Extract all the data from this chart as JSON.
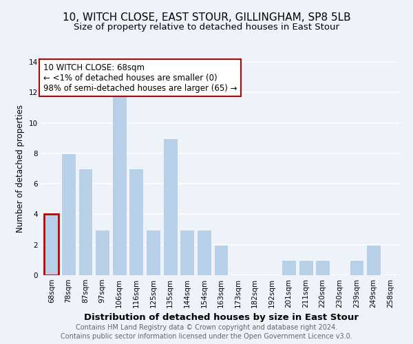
{
  "title": "10, WITCH CLOSE, EAST STOUR, GILLINGHAM, SP8 5LB",
  "subtitle": "Size of property relative to detached houses in East Stour",
  "xlabel": "Distribution of detached houses by size in East Stour",
  "ylabel": "Number of detached properties",
  "bar_labels": [
    "68sqm",
    "78sqm",
    "87sqm",
    "97sqm",
    "106sqm",
    "116sqm",
    "125sqm",
    "135sqm",
    "144sqm",
    "154sqm",
    "163sqm",
    "173sqm",
    "182sqm",
    "192sqm",
    "201sqm",
    "211sqm",
    "220sqm",
    "230sqm",
    "239sqm",
    "249sqm",
    "258sqm"
  ],
  "bar_values": [
    4,
    8,
    7,
    3,
    12,
    7,
    3,
    9,
    3,
    3,
    2,
    0,
    0,
    0,
    1,
    1,
    1,
    0,
    1,
    2,
    0
  ],
  "bar_color": "#b8cfe8",
  "highlight_index": 0,
  "highlight_color": "#c00000",
  "annotation_text": "10 WITCH CLOSE: 68sqm\n← <1% of detached houses are smaller (0)\n98% of semi-detached houses are larger (65) →",
  "annotation_box_color": "#ffffff",
  "annotation_box_edge": "#c00000",
  "ylim": [
    0,
    14
  ],
  "yticks": [
    0,
    2,
    4,
    6,
    8,
    10,
    12,
    14
  ],
  "footer1": "Contains HM Land Registry data © Crown copyright and database right 2024.",
  "footer2": "Contains public sector information licensed under the Open Government Licence v3.0.",
  "bg_color": "#eef2f9",
  "grid_color": "#ffffff",
  "title_fontsize": 11,
  "subtitle_fontsize": 9.5,
  "xlabel_fontsize": 9.5,
  "ylabel_fontsize": 8.5,
  "tick_fontsize": 7.5,
  "annotation_fontsize": 8.5,
  "footer_fontsize": 7
}
